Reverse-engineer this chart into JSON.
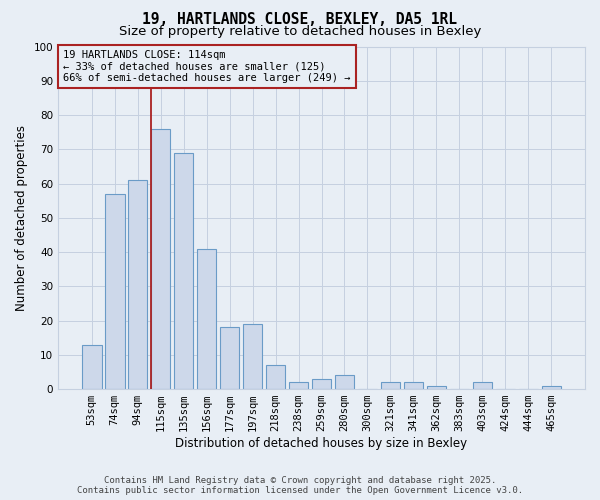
{
  "title": "19, HARTLANDS CLOSE, BEXLEY, DA5 1RL",
  "subtitle": "Size of property relative to detached houses in Bexley",
  "xlabel": "Distribution of detached houses by size in Bexley",
  "ylabel": "Number of detached properties",
  "categories": [
    "53sqm",
    "74sqm",
    "94sqm",
    "115sqm",
    "135sqm",
    "156sqm",
    "177sqm",
    "197sqm",
    "218sqm",
    "238sqm",
    "259sqm",
    "280sqm",
    "300sqm",
    "321sqm",
    "341sqm",
    "362sqm",
    "383sqm",
    "403sqm",
    "424sqm",
    "444sqm",
    "465sqm"
  ],
  "values": [
    13,
    57,
    61,
    76,
    69,
    41,
    18,
    19,
    7,
    2,
    3,
    4,
    0,
    2,
    2,
    1,
    0,
    2,
    0,
    0,
    1
  ],
  "bar_color": "#cdd8ea",
  "bar_edge_color": "#6a9bc7",
  "grid_color": "#c5d0e0",
  "background_color": "#e8eef5",
  "vline_x_index": 3,
  "vline_color": "#aa2222",
  "annotation_line1": "19 HARTLANDS CLOSE: 114sqm",
  "annotation_line2": "← 33% of detached houses are smaller (125)",
  "annotation_line3": "66% of semi-detached houses are larger (249) →",
  "annotation_box_color": "#aa2222",
  "ylim": [
    0,
    100
  ],
  "yticks": [
    0,
    10,
    20,
    30,
    40,
    50,
    60,
    70,
    80,
    90,
    100
  ],
  "footer_line1": "Contains HM Land Registry data © Crown copyright and database right 2025.",
  "footer_line2": "Contains public sector information licensed under the Open Government Licence v3.0.",
  "title_fontsize": 10.5,
  "subtitle_fontsize": 9.5,
  "axis_label_fontsize": 8.5,
  "tick_fontsize": 7.5,
  "annotation_fontsize": 7.5,
  "footer_fontsize": 6.5
}
